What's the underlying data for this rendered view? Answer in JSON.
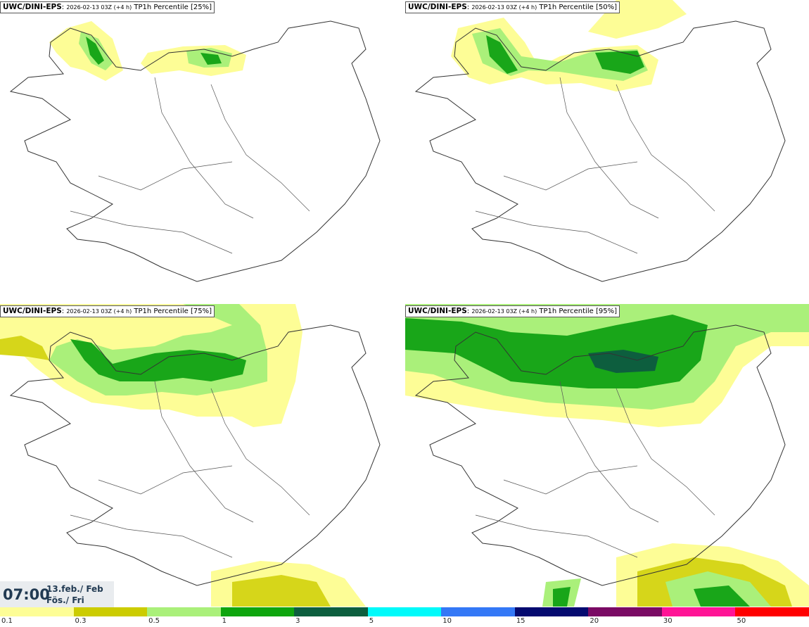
{
  "panels": [
    {
      "model": "UWC/DINI-EPS",
      "run": "2026-02-13 03Z (+4 h)",
      "product": "TP1h Percentile [25%]"
    },
    {
      "model": "UWC/DINI-EPS",
      "run": "2026-02-13 03Z (+4 h)",
      "product": "TP1h Percentile [50%]"
    },
    {
      "model": "UWC/DINI-EPS",
      "run": "2026-02-13 03Z (+4 h)",
      "product": "TP1h Percentile [75%]"
    },
    {
      "model": "UWC/DINI-EPS",
      "run": "2026-02-13 03Z (+4 h)",
      "product": "TP1h Percentile [95%]"
    }
  ],
  "valid_time": {
    "time": "07:00",
    "date": "13.feb./ Feb",
    "day": "Fös./ Fri"
  },
  "legend": {
    "labels": [
      "0.1",
      "0.3",
      "0.5",
      "1",
      "3",
      "5",
      "10",
      "15",
      "20",
      "30",
      "50"
    ],
    "colors": [
      "#fdfd96",
      "#cccc00",
      "#aaf07a",
      "#0ea50e",
      "#0d5e3e",
      "#00fafa",
      "#3478f6",
      "#040a70",
      "#7a0a64",
      "#ff1496",
      "#ff0000"
    ]
  },
  "map_colors": {
    "c1": "#fdfd96",
    "c2": "#d6d61a",
    "c3": "#aaf07a",
    "c4": "#19a619",
    "c5": "#0d5e3e"
  }
}
